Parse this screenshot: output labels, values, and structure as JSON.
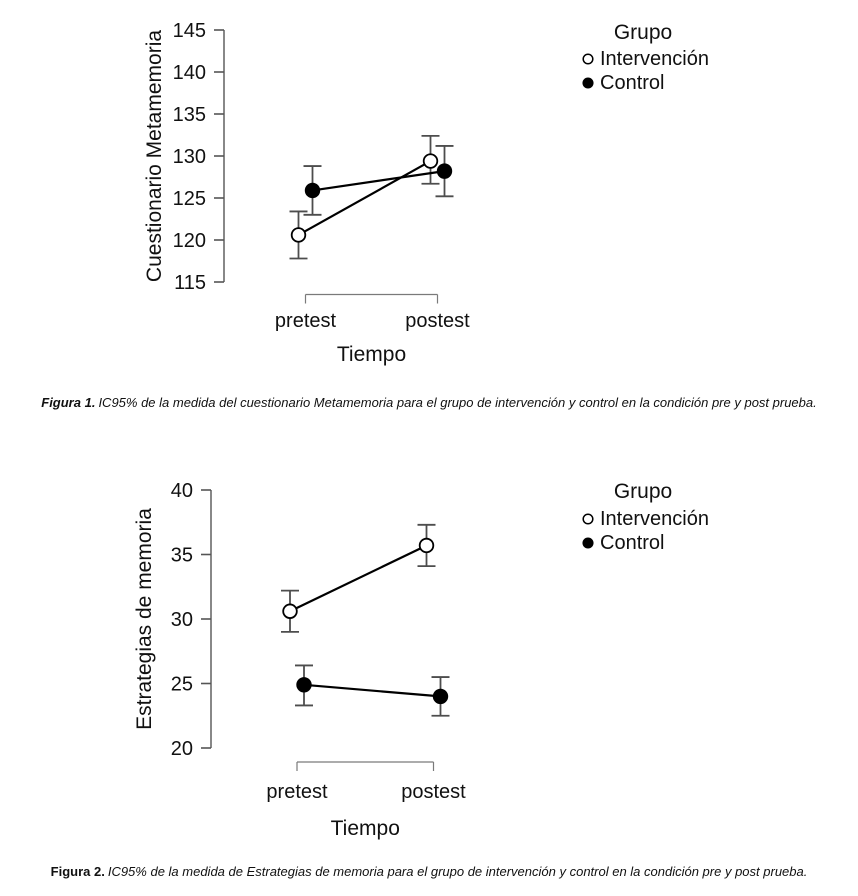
{
  "chart_data": [
    {
      "type": "line",
      "title": "",
      "ylabel": "Cuestionario Metamemoria",
      "xlabel": "Tiempo",
      "categories": [
        "pretest",
        "postest"
      ],
      "ylim": [
        115,
        145
      ],
      "yticks": [
        115,
        120,
        125,
        130,
        135,
        140,
        145
      ],
      "grid": false,
      "legend": {
        "title": "Grupo",
        "position": "right-outside-top"
      },
      "series": [
        {
          "name": "Intervención",
          "marker": "open-circle",
          "values": [
            120.6,
            129.4
          ],
          "ci_low": [
            117.8,
            126.7
          ],
          "ci_high": [
            123.4,
            132.4
          ]
        },
        {
          "name": "Control",
          "marker": "filled-circle",
          "values": [
            125.9,
            128.2
          ],
          "ci_low": [
            123.0,
            125.2
          ],
          "ci_high": [
            128.8,
            131.2
          ]
        }
      ],
      "error_bars": "IC95%",
      "caption_label": "Figura 1.",
      "caption_text": "IC95% de la medida del cuestionario Metamemoria para el grupo de intervención y control en la condición pre y post prueba."
    },
    {
      "type": "line",
      "title": "",
      "ylabel": "Estrategias de memoria",
      "xlabel": "Tiempo",
      "categories": [
        "pretest",
        "postest"
      ],
      "ylim": [
        20,
        40
      ],
      "yticks": [
        20,
        25,
        30,
        35,
        40
      ],
      "grid": false,
      "legend": {
        "title": "Grupo",
        "position": "right-outside-top"
      },
      "series": [
        {
          "name": "Intervención",
          "marker": "open-circle",
          "values": [
            30.6,
            35.7
          ],
          "ci_low": [
            29.0,
            34.1
          ],
          "ci_high": [
            32.2,
            37.3
          ]
        },
        {
          "name": "Control",
          "marker": "filled-circle",
          "values": [
            24.9,
            24.0
          ],
          "ci_low": [
            23.3,
            22.5
          ],
          "ci_high": [
            26.4,
            25.5
          ]
        }
      ],
      "error_bars": "IC95%",
      "caption_label": "Figura 2.",
      "caption_text": "IC95% de la medida de Estrategias de memoria para el grupo de intervención y control en la condición pre y post prueba."
    }
  ],
  "colors": {
    "text": "#111111",
    "axis": "#555555",
    "bracket": "#7a7a7a",
    "series_line": "#000000",
    "marker_stroke": "#000000",
    "marker_open_fill": "#ffffff",
    "marker_filled_fill": "#000000",
    "error_bar": "#4d4d4d",
    "background": "#ffffff"
  }
}
